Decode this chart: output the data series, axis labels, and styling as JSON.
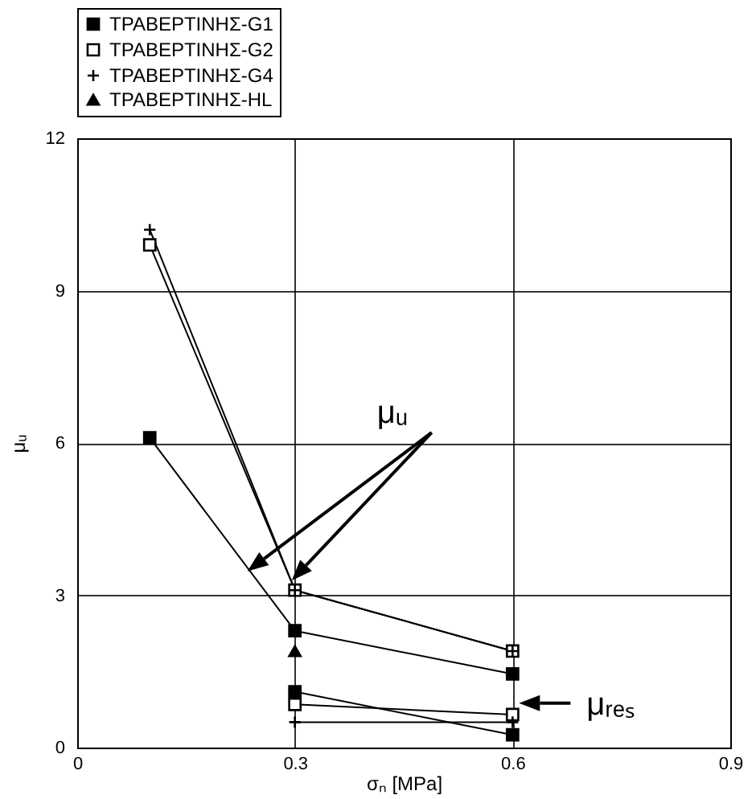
{
  "chart_data": {
    "type": "line",
    "xlabel": "σₙ [MPa]",
    "ylabel": "μᵤ",
    "xlim": [
      0,
      0.9
    ],
    "xticks": [
      {
        "value": 0,
        "label": "0"
      },
      0.3,
      0.6,
      0.9
    ],
    "ylim": [
      0,
      12
    ],
    "yticks": [
      0,
      3,
      6,
      9,
      12
    ],
    "grid": true,
    "legend": "top",
    "series": [
      {
        "name": "ΤΡΑΒΕΡΤΙΝΗΣ-G1",
        "color": "#000000",
        "marker": "square",
        "x": [
          0.1,
          0.3,
          0.6
        ],
        "values": [
          6.1,
          2.3,
          1.45
        ]
      },
      {
        "name": "ΤΡΑΒΕΡΤΙΝΗΣ-G2",
        "color": "#000000",
        "colors": [
          "#ffffff",
          "#ffffff",
          "#ffffff"
        ],
        "marker": "square",
        "x": [
          0.1,
          0.3,
          0.6
        ],
        "values": [
          9.9,
          3.1,
          1.9
        ]
      },
      {
        "name": "ΤΡΑΒΕΡΤΙΝΗΣ-G4",
        "color": "#000000",
        "marker": "cross",
        "x": [
          0.1,
          0.3,
          0.6
        ],
        "values": [
          10.2,
          3.1,
          1.9
        ]
      },
      {
        "name": "ΤΡΑΒΕΡΤΙΝΗΣ-HL",
        "color": "#000000",
        "marker": "triangle",
        "x": [
          0.3
        ],
        "values": [
          1.9
        ]
      },
      {
        "color": "#000000",
        "marker": "square",
        "x": [
          0.3,
          0.6
        ],
        "values": [
          1.1,
          0.25
        ]
      },
      {
        "color": "#000000",
        "colors": [
          "#ffffff",
          "#ffffff"
        ],
        "marker": "square",
        "x": [
          0.3,
          0.6
        ],
        "values": [
          0.85,
          0.65
        ]
      },
      {
        "color": "#000000",
        "marker": "cross",
        "x": [
          0.3,
          0.6
        ],
        "values": [
          0.5,
          0.5
        ]
      }
    ],
    "annotations": [
      "μᵤ",
      {
        "text": "μᵣₑₛ",
        "x": 0.6,
        "y": 0.75
      }
    ]
  }
}
